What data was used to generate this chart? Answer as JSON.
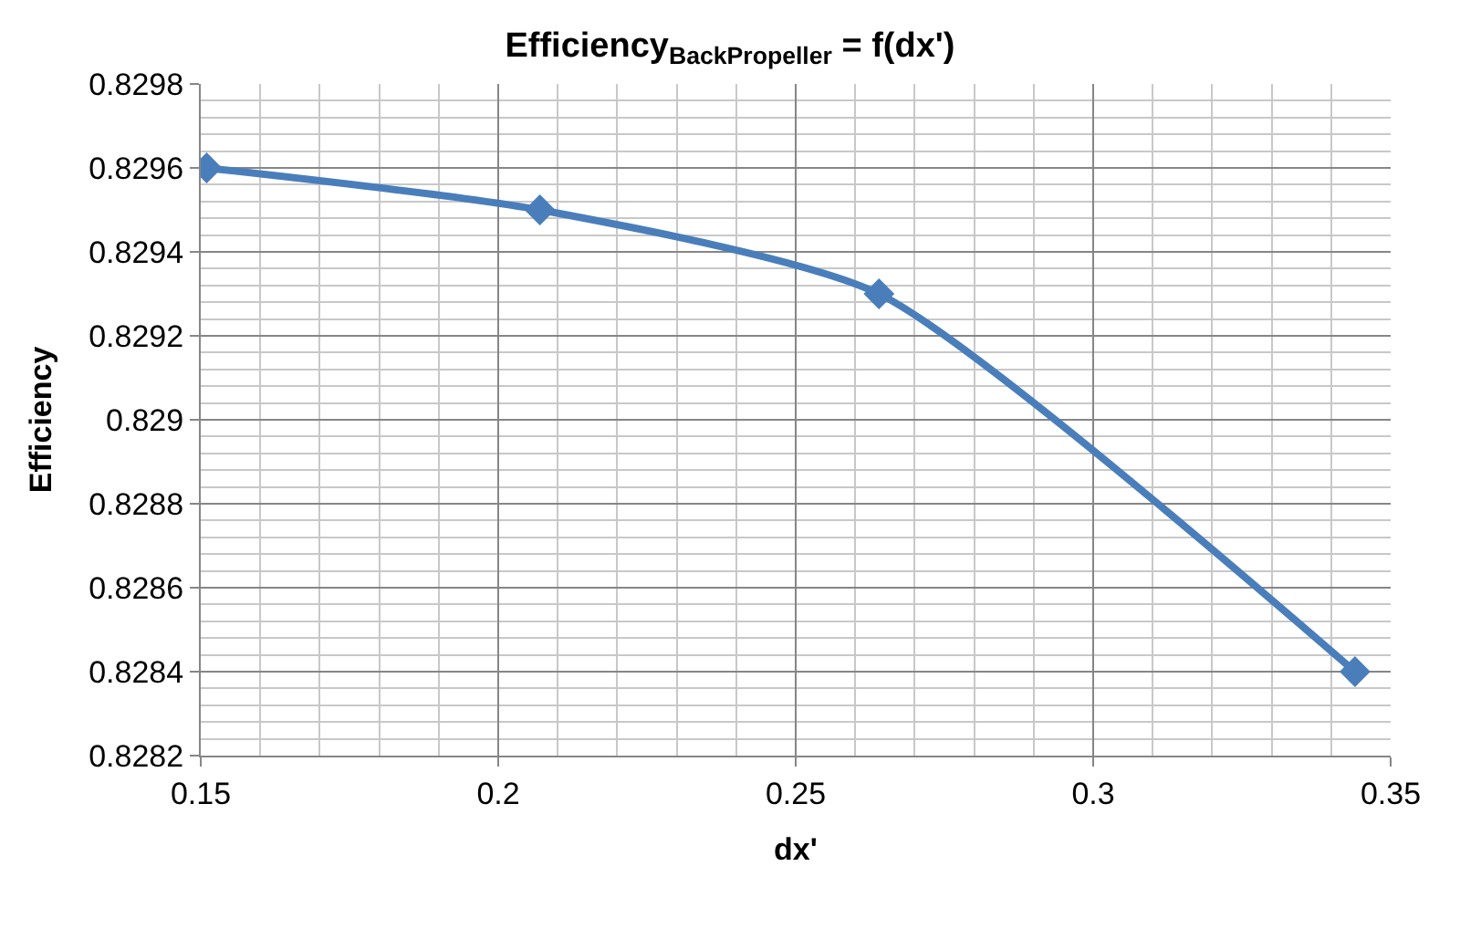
{
  "chart_data": {
    "type": "line",
    "title": "Efficiency$_{BackPropeller}$ = f(dx')",
    "xlabel": "dx'",
    "ylabel": "Efficiency",
    "x": [
      0.151,
      0.207,
      0.264,
      0.344
    ],
    "series": [
      {
        "color": "#4a7ebb",
        "values": [
          0.8296,
          0.8295,
          0.8293,
          0.8284
        ]
      }
    ],
    "xlim": [
      0.15,
      0.35
    ],
    "xticks": [
      0.15,
      0.2,
      0.25,
      0.3,
      0.35
    ],
    "ylim": [
      0.8282,
      0.8298
    ],
    "yticks": [
      0.8282,
      0.8284,
      0.8286,
      0.8288,
      0.829,
      0.8292,
      0.8294,
      0.8296,
      0.8298
    ],
    "grid": true,
    "marker": "diamond",
    "line_style": "solid"
  }
}
